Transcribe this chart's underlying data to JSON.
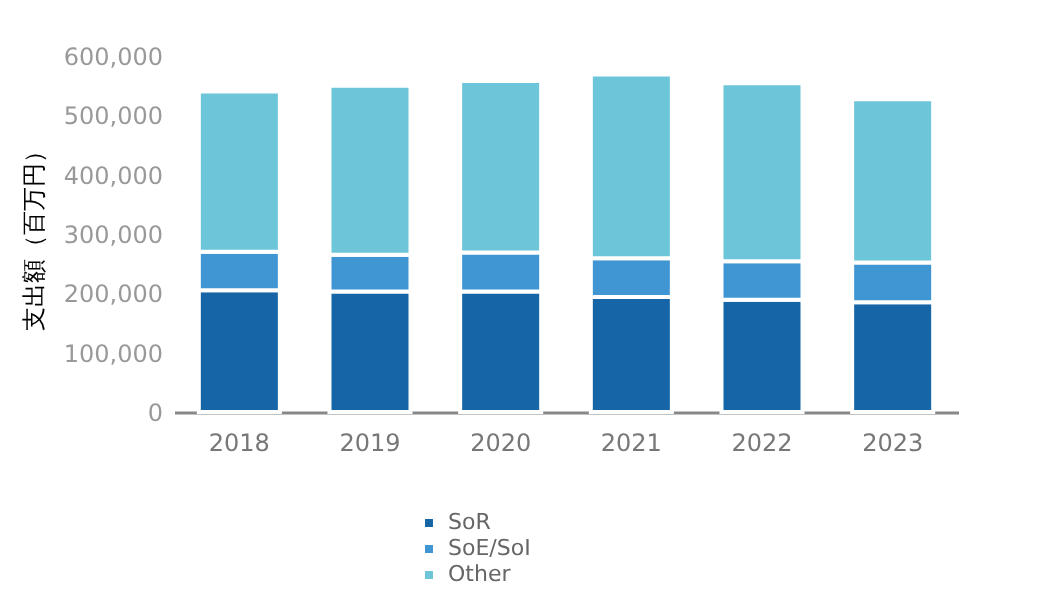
{
  "chart_data": {
    "type": "bar",
    "stacked": true,
    "ylabel": "支出額（百万円）",
    "categories": [
      "2018",
      "2019",
      "2020",
      "2021",
      "2022",
      "2023"
    ],
    "series": [
      {
        "name": "SoR",
        "color": "#1565a7",
        "values": [
          205000,
          203000,
          203000,
          194000,
          189000,
          185000
        ]
      },
      {
        "name": "SoE/SoI",
        "color": "#4095d3",
        "values": [
          65000,
          62000,
          66000,
          65000,
          65000,
          67000
        ]
      },
      {
        "name": "Other",
        "color": "#6cc5d8",
        "values": [
          270000,
          285000,
          289000,
          310000,
          300000,
          275000
        ]
      }
    ],
    "ylim": [
      0,
      600000
    ],
    "yticks": [
      0,
      {
        "value": 100000,
        "label": "100,000"
      },
      {
        "value": 200000,
        "label": "200,000"
      },
      {
        "value": 300000,
        "label": "300,000"
      },
      {
        "value": 400000,
        "label": "400,000"
      },
      {
        "value": 500000,
        "label": "500,000"
      },
      {
        "value": 600000,
        "label": "600,000"
      }
    ],
    "grid": false,
    "legend": "bottom"
  }
}
